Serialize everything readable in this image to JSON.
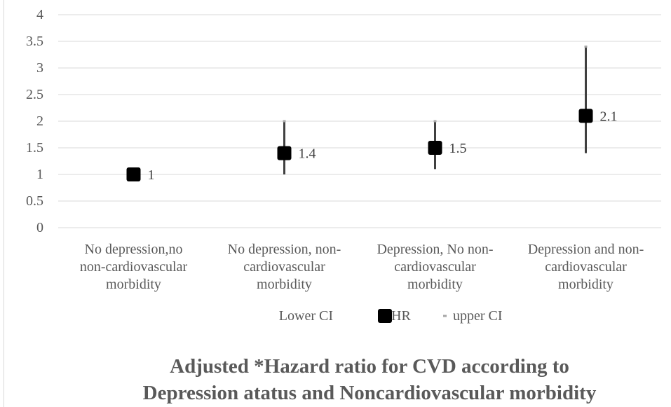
{
  "chart_data": {
    "type": "scatter",
    "title": "Adjusted *Hazard ratio for CVD according to Depression atatus  and  Noncardiovascular morbidity",
    "title_lines": [
      "Adjusted *Hazard ratio for CVD according to",
      "Depression atatus  and  Noncardiovascular morbidity"
    ],
    "categories": [
      "No depression,no non-cardiovascular morbidity",
      "No depression, non-cardiovascular morbidity",
      "Depression, No non-cardiovascular morbidity",
      "Depression and non-cardiovascular morbidity"
    ],
    "category_lines": [
      [
        "No depression,no",
        "non-cardiovascular",
        "morbidity"
      ],
      [
        "No depression, non-",
        "cardiovascular",
        "morbidity"
      ],
      [
        "Depression, No non-",
        "cardiovascular",
        "morbidity"
      ],
      [
        "Depression and non-",
        "cardiovascular",
        "morbidity"
      ]
    ],
    "series": [
      {
        "name": "Lower CI",
        "values": [
          1,
          1.0,
          1.1,
          1.4
        ]
      },
      {
        "name": "HR",
        "values": [
          1,
          1.4,
          1.5,
          2.1
        ]
      },
      {
        "name": "upper CI",
        "values": [
          1,
          2.0,
          2.0,
          3.4
        ]
      }
    ],
    "data_labels": [
      "1",
      "1.4",
      "1.5",
      "2.1"
    ],
    "ylim": [
      0,
      4
    ],
    "yticks": [
      "0",
      "0.5",
      "1",
      "1.5",
      "2",
      "2.5",
      "3",
      "3.5",
      "4"
    ],
    "grid": true,
    "legend_position": "bottom",
    "colors": {
      "hr_marker": "#000000",
      "ci_line": "#404040",
      "upper_marker": "#a6a6a6",
      "grid": "#d9d9d9",
      "text": "#595959"
    }
  }
}
